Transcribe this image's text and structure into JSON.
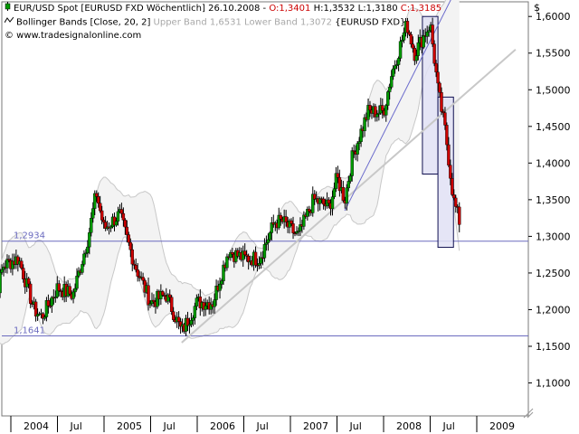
{
  "legend": {
    "line1": {
      "symbol": "EUR/USD Spot [EURUSD FXD  Wöchentlich]",
      "date": "26.10.2008",
      "sep": " - ",
      "open": "O:1,3401",
      "high": "H:1,3532",
      "low": "L:1,3180",
      "close": "C:1,3185"
    },
    "line2": {
      "name": "Bollinger Bands [Close, 20, 2]",
      "upper": "Upper Band 1,6531",
      "lower": "Lower Band 1,3072",
      "symbol": "{EURUSD FXD}"
    },
    "line3": {
      "copyright": "© www.tradesignalonline.com"
    }
  },
  "colors": {
    "up_candle": "#009900",
    "down_candle": "#cc0000",
    "band_fill": "#f3f3f3",
    "band_line": "#c8c8c8",
    "trend_blue": "#6b6bcc",
    "trend_gray": "#c8c8c8",
    "hline": "#6b6bbf",
    "highlight_fill": "#e0e0f5",
    "highlight_border": "#101050"
  },
  "chart_data": {
    "type": "candlestick",
    "title": "EUR/USD Spot [EURUSD FXD  Wöchentlich]",
    "currency_label": "$",
    "y_ticks": [
      "1,6000",
      "1,5500",
      "1,5000",
      "1,4500",
      "1,4000",
      "1,3500",
      "1,3000",
      "1,2500",
      "1,2000",
      "1,1500",
      "1,1000"
    ],
    "y_tick_values": [
      1.6,
      1.55,
      1.5,
      1.45,
      1.4,
      1.35,
      1.3,
      1.25,
      1.2,
      1.15,
      1.1
    ],
    "ylim": [
      1.055,
      1.62
    ],
    "x_ticks": [
      "2004",
      "Jul",
      "2005",
      "Jul",
      "2006",
      "Jul",
      "2007",
      "Jul",
      "2008",
      "Jul",
      "2009"
    ],
    "x_tick_dates": [
      "2004-01",
      "2004-07",
      "2005-01",
      "2005-07",
      "2006-01",
      "2006-07",
      "2007-01",
      "2007-07",
      "2008-01",
      "2008-07",
      "2009-01"
    ],
    "horizontal_levels": [
      {
        "label": "1,2934",
        "value": 1.2934
      },
      {
        "label": "1,1641",
        "value": 1.1641
      }
    ],
    "close_path": [
      {
        "date": "2003-10",
        "close": 1.17
      },
      {
        "date": "2003-12",
        "close": 1.26
      },
      {
        "date": "2004-02",
        "close": 1.27
      },
      {
        "date": "2004-04",
        "close": 1.2
      },
      {
        "date": "2004-05",
        "close": 1.19
      },
      {
        "date": "2004-07",
        "close": 1.23
      },
      {
        "date": "2004-09",
        "close": 1.22
      },
      {
        "date": "2004-11",
        "close": 1.3
      },
      {
        "date": "2004-12",
        "close": 1.36
      },
      {
        "date": "2005-01",
        "close": 1.31
      },
      {
        "date": "2005-03",
        "close": 1.33
      },
      {
        "date": "2005-05",
        "close": 1.26
      },
      {
        "date": "2005-07",
        "close": 1.21
      },
      {
        "date": "2005-09",
        "close": 1.22
      },
      {
        "date": "2005-11",
        "close": 1.17
      },
      {
        "date": "2006-01",
        "close": 1.21
      },
      {
        "date": "2006-03",
        "close": 1.21
      },
      {
        "date": "2006-05",
        "close": 1.28
      },
      {
        "date": "2006-07",
        "close": 1.27
      },
      {
        "date": "2006-09",
        "close": 1.27
      },
      {
        "date": "2006-11",
        "close": 1.32
      },
      {
        "date": "2006-12",
        "close": 1.32
      },
      {
        "date": "2007-02",
        "close": 1.3
      },
      {
        "date": "2007-04",
        "close": 1.35
      },
      {
        "date": "2007-06",
        "close": 1.34
      },
      {
        "date": "2007-07",
        "close": 1.38
      },
      {
        "date": "2007-08",
        "close": 1.35
      },
      {
        "date": "2007-09",
        "close": 1.41
      },
      {
        "date": "2007-11",
        "close": 1.47
      },
      {
        "date": "2008-01",
        "close": 1.47
      },
      {
        "date": "2008-02",
        "close": 1.52
      },
      {
        "date": "2008-04",
        "close": 1.59
      },
      {
        "date": "2008-05",
        "close": 1.55
      },
      {
        "date": "2008-06",
        "close": 1.57
      },
      {
        "date": "2008-07",
        "close": 1.59
      },
      {
        "date": "2008-08",
        "close": 1.5
      },
      {
        "date": "2008-09",
        "close": 1.44
      },
      {
        "date": "2008-10",
        "close": 1.35
      },
      {
        "date": "2008-10-26",
        "close": 1.3185
      }
    ],
    "trendlines": [
      {
        "name": "support-long",
        "from": {
          "date": "2005-11",
          "value": 1.155
        },
        "to": {
          "date": "2009-06",
          "value": 1.555
        }
      },
      {
        "name": "support-steep",
        "from": {
          "date": "2007-08",
          "value": 1.335
        },
        "to": {
          "date": "2008-10",
          "value": 1.63
        }
      }
    ],
    "highlight_boxes": [
      {
        "from_date": "2008-06",
        "to_date": "2008-08",
        "low": 1.385,
        "high": 1.6
      },
      {
        "from_date": "2008-08",
        "to_date": "2008-10",
        "low": 1.285,
        "high": 1.49
      }
    ]
  }
}
